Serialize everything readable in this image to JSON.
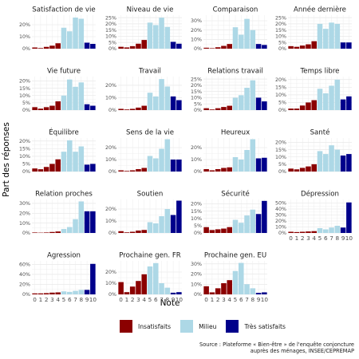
{
  "chart_data": {
    "type": "bar",
    "xlabel": "Note",
    "ylabel": "Part des réponses",
    "x": [
      0,
      1,
      2,
      3,
      4,
      5,
      6,
      7,
      8,
      9,
      10
    ],
    "x_tick_labels": [
      "0",
      "1",
      "2",
      "3",
      "4",
      "5",
      "6",
      "7",
      "8",
      "9",
      "10"
    ],
    "grid": true,
    "legend_position": "bottom",
    "groups": [
      {
        "name": "Insatisfaits",
        "notes": [
          0,
          1,
          2,
          3,
          4
        ],
        "color": "#8b0000"
      },
      {
        "name": "Milieu",
        "notes": [
          5,
          6,
          7,
          8
        ],
        "color": "#add8e6"
      },
      {
        "name": "Très satisfaits",
        "notes": [
          9,
          10
        ],
        "color": "#00008b"
      }
    ],
    "caption_lines": [
      "Source : Plateforme « Bien-être » de l'enquête conjoncture",
      "auprès des ménages, INSEE/CEPREMAP"
    ],
    "panels": [
      {
        "title": "Satisfaction de vie",
        "ylim": [
          0,
          28
        ],
        "yticks": [
          0,
          10,
          20
        ],
        "values": [
          1,
          0.5,
          1.5,
          2.5,
          4.5,
          17.5,
          14.5,
          26,
          25,
          5,
          4
        ]
      },
      {
        "title": "Niveau de vie",
        "ylim": [
          0,
          27
        ],
        "yticks": [
          0,
          5,
          10,
          15,
          20,
          25
        ],
        "values": [
          1.5,
          1,
          2,
          4,
          7,
          21,
          19,
          25,
          17.5,
          5.5,
          4
        ]
      },
      {
        "title": "Comparaison",
        "ylim": [
          0,
          36
        ],
        "yticks": [
          0,
          10,
          20,
          30
        ],
        "values": [
          1,
          0.5,
          1.5,
          3,
          5,
          23,
          15,
          32,
          20,
          5,
          4
        ]
      },
      {
        "title": "Année dernière",
        "ylim": [
          0,
          27
        ],
        "yticks": [
          0,
          5,
          10,
          15,
          20,
          25
        ],
        "values": [
          2,
          1.5,
          2.5,
          3.5,
          6,
          20,
          16,
          21,
          20,
          5,
          5
        ]
      },
      {
        "title": "Vie future",
        "ylim": [
          0,
          23
        ],
        "yticks": [
          0,
          5,
          10,
          15,
          20
        ],
        "values": [
          2,
          1,
          2,
          3,
          6,
          10,
          21,
          16,
          19,
          4,
          3
        ]
      },
      {
        "title": "Travail",
        "ylim": [
          0,
          27
        ],
        "yticks": [
          0,
          10,
          20
        ],
        "values": [
          1,
          0.5,
          1,
          2,
          3.5,
          14,
          11,
          25,
          19,
          11,
          8
        ]
      },
      {
        "title": "Relations travail",
        "ylim": [
          0,
          27
        ],
        "yticks": [
          0,
          5,
          10,
          15,
          20,
          25
        ],
        "values": [
          1.5,
          0.5,
          1.5,
          2.5,
          3.5,
          10,
          12,
          18,
          24,
          10,
          7
        ]
      },
      {
        "title": "Temps libre",
        "ylim": [
          0,
          22
        ],
        "yticks": [
          0,
          5,
          10,
          15,
          20
        ],
        "values": [
          1,
          1,
          3,
          5,
          6.5,
          14,
          11,
          16,
          20,
          7,
          9
        ]
      },
      {
        "title": "Équilibre",
        "ylim": [
          0,
          22
        ],
        "yticks": [
          0,
          5,
          10,
          15,
          20
        ],
        "values": [
          2,
          1.5,
          3,
          5,
          8,
          13,
          20.5,
          13,
          16.5,
          4.5,
          5
        ]
      },
      {
        "title": "Sens de la vie",
        "ylim": [
          0,
          28
        ],
        "yticks": [
          0,
          10,
          20
        ],
        "values": [
          1,
          0.5,
          1,
          2,
          3,
          13,
          11,
          19,
          27,
          10,
          10
        ]
      },
      {
        "title": "Heureux",
        "ylim": [
          0,
          28
        ],
        "yticks": [
          0,
          10,
          20
        ],
        "values": [
          2,
          1,
          2,
          3,
          3.5,
          12,
          10,
          18,
          27,
          11,
          11.5
        ]
      },
      {
        "title": "Santé",
        "ylim": [
          0,
          23
        ],
        "yticks": [
          0,
          5,
          10,
          15,
          20
        ],
        "values": [
          2,
          1.5,
          2.5,
          3.5,
          5,
          14,
          12,
          18,
          15,
          11,
          12
        ]
      },
      {
        "title": "Relation proches",
        "ylim": [
          0,
          34
        ],
        "yticks": [
          0,
          10,
          20,
          30
        ],
        "values": [
          0.5,
          0.3,
          0.5,
          1,
          1.5,
          4,
          6,
          14,
          32,
          22,
          22
        ]
      },
      {
        "title": "Soutien",
        "ylim": [
          0,
          28
        ],
        "yticks": [
          0,
          10,
          20
        ],
        "values": [
          1.5,
          0.5,
          1,
          2,
          2.5,
          9,
          8,
          14,
          20,
          15,
          27
        ]
      },
      {
        "title": "Sécurité",
        "ylim": [
          0,
          23
        ],
        "yticks": [
          0,
          5,
          10,
          15,
          20
        ],
        "values": [
          4,
          2,
          2.5,
          3,
          4,
          9,
          7,
          12,
          16,
          13,
          22
        ]
      },
      {
        "title": "Dépression",
        "ylim": [
          0,
          56
        ],
        "yticks": [
          0,
          10,
          20,
          30,
          40,
          50
        ],
        "values": [
          2,
          1.5,
          2,
          2.5,
          3,
          8,
          6,
          9,
          12,
          9,
          51
        ]
      },
      {
        "title": "Agression",
        "ylim": [
          0,
          67
        ],
        "yticks": [
          0,
          20,
          40,
          60
        ],
        "values": [
          2,
          2,
          2.5,
          3.5,
          4,
          6,
          5,
          7,
          9,
          9,
          61
        ]
      },
      {
        "title": "Prochaine gen. FR",
        "ylim": [
          0,
          30
        ],
        "yticks": [
          0,
          10,
          20
        ],
        "values": [
          11,
          2,
          7,
          12,
          18,
          25,
          28,
          10,
          6,
          1.5,
          2
        ]
      },
      {
        "title": "Prochaine gen. EU",
        "ylim": [
          0,
          33
        ],
        "yticks": [
          0,
          10,
          20,
          30
        ],
        "values": [
          8,
          2,
          6,
          11,
          14,
          23,
          31,
          10,
          6,
          1.5,
          2
        ]
      }
    ]
  }
}
